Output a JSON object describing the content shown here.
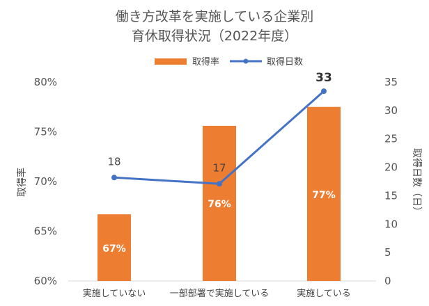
{
  "chart_data": {
    "type": "bar",
    "title": [
      "働き方改革を実施している企業別",
      "育休取得状況（2022年度）"
    ],
    "categories": [
      "実施していない",
      "一部部署で実施している",
      "実施している"
    ],
    "series": [
      {
        "name": "取得率",
        "type": "bar",
        "axis": "left",
        "color": "#ED7D31",
        "values": [
          66.7,
          75.6,
          77.5
        ],
        "labels": [
          "67%",
          "76%",
          "77%"
        ]
      },
      {
        "name": "取得日数",
        "type": "line",
        "axis": "right",
        "color": "#4472C4",
        "values": [
          18.2,
          17.1,
          33.4
        ],
        "labels": [
          "18",
          "17",
          "33"
        ]
      }
    ],
    "ylabel_left": "取得率",
    "ylabel_right": "取得日数（日）",
    "ylim_left": [
      60,
      80
    ],
    "yticks_left": [
      "60%",
      "65%",
      "70%",
      "75%",
      "80%"
    ],
    "ylim_right": [
      0,
      35
    ],
    "yticks_right": [
      "0",
      "5",
      "10",
      "15",
      "20",
      "25",
      "30",
      "35"
    ],
    "legend_position": "top-center",
    "grid": false
  }
}
